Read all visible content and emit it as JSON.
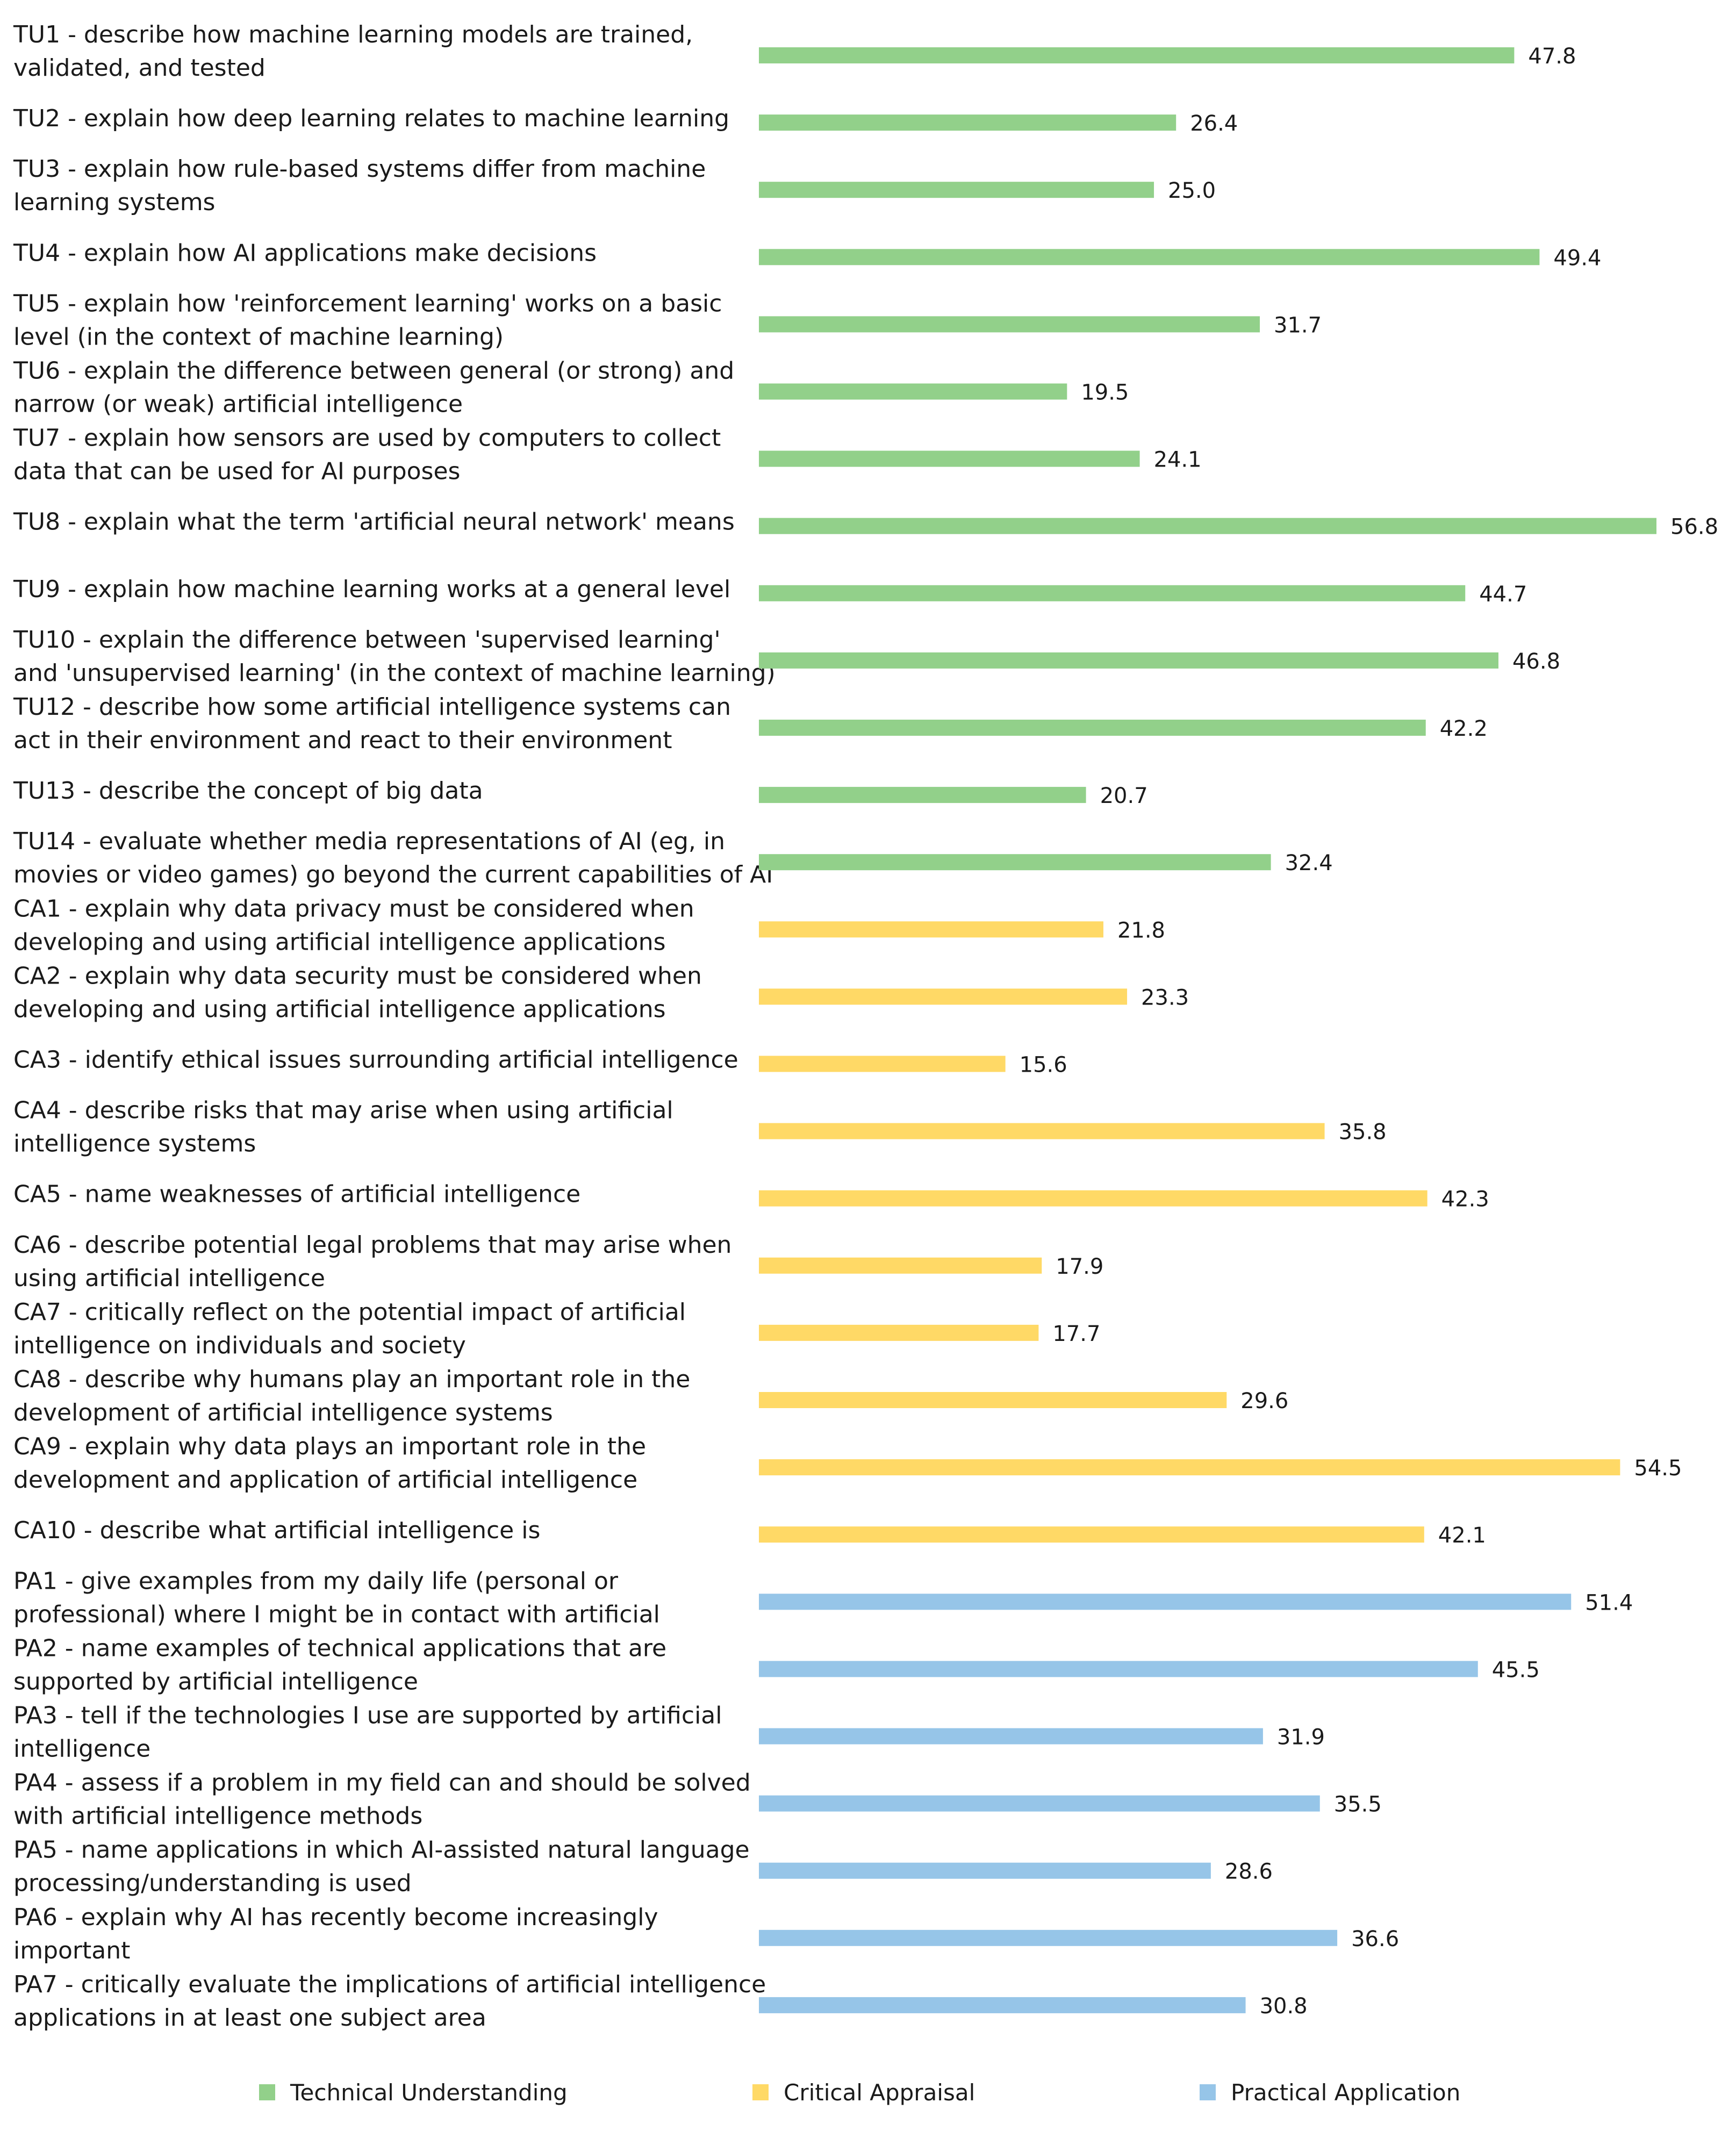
{
  "chart_data": {
    "type": "bar",
    "orientation": "horizontal",
    "legend_position": "bottom",
    "grid": false,
    "xlim": [
      0,
      56.8
    ],
    "colors": {
      "Technical Understanding": "#92d08a",
      "Critical Appraisal": "#ffd966",
      "Practical Application": "#96c5e8"
    },
    "legend": [
      "Technical Understanding",
      "Critical Appraisal",
      "Practical Application"
    ],
    "categories": [
      {
        "lines": [
          "TU1 - describe how machine learning models are trained,",
          "validated, and tested"
        ],
        "value": 47.8,
        "label": "47.8",
        "group": "Technical Understanding"
      },
      {
        "lines": [
          "TU2 - explain how deep learning relates to machine learning"
        ],
        "value": 26.4,
        "label": "26.4",
        "group": "Technical Understanding"
      },
      {
        "lines": [
          "TU3 - explain how rule-based systems differ from machine",
          "learning systems"
        ],
        "value": 25.0,
        "label": "25.0",
        "group": "Technical Understanding"
      },
      {
        "lines": [
          "TU4 - explain how AI applications make decisions"
        ],
        "value": 49.4,
        "label": "49.4",
        "group": "Technical Understanding"
      },
      {
        "lines": [
          "TU5 - explain how 'reinforcement learning' works on a basic",
          "level (in the context of machine learning)"
        ],
        "value": 31.7,
        "label": "31.7",
        "group": "Technical Understanding"
      },
      {
        "lines": [
          "TU6 - explain the difference between general (or strong) and",
          "narrow (or weak) artificial intelligence"
        ],
        "value": 19.5,
        "label": "19.5",
        "group": "Technical Understanding"
      },
      {
        "lines": [
          "TU7 - explain how sensors are used by computers to collect",
          "data that can be used for AI purposes"
        ],
        "value": 24.1,
        "label": "24.1",
        "group": "Technical Understanding"
      },
      {
        "lines": [
          "TU8 - explain what the term 'artificial neural network' means"
        ],
        "value": 56.8,
        "label": "56.8",
        "group": "Technical Understanding"
      },
      {
        "lines": [
          "TU9 - explain how machine learning works at a general level"
        ],
        "value": 44.7,
        "label": "44.7",
        "group": "Technical Understanding"
      },
      {
        "lines": [
          "TU10 - explain the difference between 'supervised learning'",
          "and 'unsupervised learning' (in the context of machine learning)"
        ],
        "value": 46.8,
        "label": "46.8",
        "group": "Technical Understanding"
      },
      {
        "lines": [
          "TU12 - describe how some artificial intelligence systems can",
          "act in their environment and react to their environment"
        ],
        "value": 42.2,
        "label": "42.2",
        "group": "Technical Understanding"
      },
      {
        "lines": [
          "TU13 - describe the concept of big data"
        ],
        "value": 20.7,
        "label": "20.7",
        "group": "Technical Understanding"
      },
      {
        "lines": [
          "TU14 - evaluate whether media representations of AI (eg, in",
          "movies or video games) go beyond the current capabilities of AI"
        ],
        "value": 32.4,
        "label": "32.4",
        "group": "Technical Understanding"
      },
      {
        "lines": [
          "CA1 - explain why data privacy must be considered when",
          "developing and using artificial intelligence applications"
        ],
        "value": 21.8,
        "label": "21.8",
        "group": "Critical Appraisal"
      },
      {
        "lines": [
          "CA2 - explain why data security must be considered when",
          "developing and using artificial intelligence applications"
        ],
        "value": 23.3,
        "label": "23.3",
        "group": "Critical Appraisal"
      },
      {
        "lines": [
          "CA3 - identify ethical issues surrounding artificial intelligence"
        ],
        "value": 15.6,
        "label": "15.6",
        "group": "Critical Appraisal"
      },
      {
        "lines": [
          "CA4 - describe risks that may arise when using artificial",
          "intelligence systems"
        ],
        "value": 35.8,
        "label": "35.8",
        "group": "Critical Appraisal"
      },
      {
        "lines": [
          "CA5 - name weaknesses of artificial intelligence"
        ],
        "value": 42.3,
        "label": "42.3",
        "group": "Critical Appraisal"
      },
      {
        "lines": [
          "CA6 - describe potential legal problems that may arise when",
          "using artificial intelligence"
        ],
        "value": 17.9,
        "label": "17.9",
        "group": "Critical Appraisal"
      },
      {
        "lines": [
          "CA7 - critically reflect on the potential impact of artificial",
          "intelligence on individuals and society"
        ],
        "value": 17.7,
        "label": "17.7",
        "group": "Critical Appraisal"
      },
      {
        "lines": [
          "CA8 - describe why humans play an important role in the",
          "development of artificial intelligence systems"
        ],
        "value": 29.6,
        "label": "29.6",
        "group": "Critical Appraisal"
      },
      {
        "lines": [
          "CA9 - explain why data plays an important role in the",
          "development and application of artificial intelligence"
        ],
        "value": 54.5,
        "label": "54.5",
        "group": "Critical Appraisal"
      },
      {
        "lines": [
          "CA10 - describe what artificial intelligence is"
        ],
        "value": 42.1,
        "label": "42.1",
        "group": "Critical Appraisal"
      },
      {
        "lines": [
          "PA1 - give examples from my daily life (personal or",
          "professional) where I might be in contact with artificial"
        ],
        "value": 51.4,
        "label": "51.4",
        "group": "Practical Application"
      },
      {
        "lines": [
          "PA2 - name examples of technical applications that are",
          "supported by artificial intelligence"
        ],
        "value": 45.5,
        "label": "45.5",
        "group": "Practical Application"
      },
      {
        "lines": [
          "PA3 - tell if the technologies I use are supported by artificial",
          "intelligence"
        ],
        "value": 31.9,
        "label": "31.9",
        "group": "Practical Application"
      },
      {
        "lines": [
          "PA4 - assess if a problem in my field can and should be solved",
          "with artificial intelligence methods"
        ],
        "value": 35.5,
        "label": "35.5",
        "group": "Practical Application"
      },
      {
        "lines": [
          "PA5 - name applications in which AI-assisted natural language",
          "processing/understanding is used"
        ],
        "value": 28.6,
        "label": "28.6",
        "group": "Practical Application"
      },
      {
        "lines": [
          "PA6 - explain why AI has recently become increasingly",
          "important"
        ],
        "value": 36.6,
        "label": "36.6",
        "group": "Practical Application"
      },
      {
        "lines": [
          "PA7 - critically evaluate the implications of artificial intelligence",
          "applications in at least one subject area"
        ],
        "value": 30.8,
        "label": "30.8",
        "group": "Practical Application"
      }
    ]
  }
}
